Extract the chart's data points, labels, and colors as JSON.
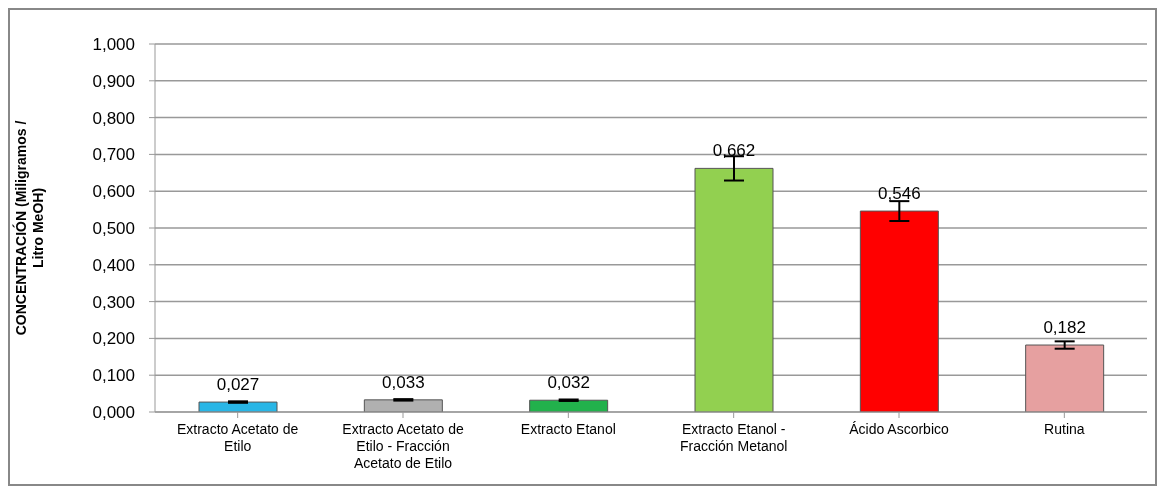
{
  "chart_data": {
    "type": "bar",
    "ylabel": "CONCENTRACIÓN (Miligramos / Litro MeOH)",
    "categories": [
      "Extracto Acetato de Etilo",
      "Extracto Acetato de Etilo - Fracción Acetato de Etilo",
      "Extracto Etanol",
      "Extracto Etanol - Fracción Metanol",
      "Ácido Ascorbico",
      "Rutina"
    ],
    "values": [
      0.027,
      0.033,
      0.032,
      0.662,
      0.546,
      0.182
    ],
    "errors": [
      0.002,
      0.002,
      0.002,
      0.033,
      0.027,
      0.01
    ],
    "colors": [
      "#29b6e6",
      "#b0b0b0",
      "#22b14c",
      "#92d050",
      "#ff0000",
      "#e6a0a0"
    ],
    "value_labels": [
      "0,027",
      "0,033",
      "0,032",
      "0,662",
      "0,546",
      "0,182"
    ],
    "ylim": [
      0,
      1
    ],
    "yticks": [
      {
        "value": 0,
        "label": "0,000"
      },
      {
        "value": 0.1,
        "label": "0,100"
      },
      {
        "value": 0.2,
        "label": "0,200"
      },
      {
        "value": 0.3,
        "label": "0,300"
      },
      {
        "value": 0.4,
        "label": "0,400"
      },
      {
        "value": 0.5,
        "label": "0,500"
      },
      {
        "value": 0.6,
        "label": "0,600"
      },
      {
        "value": 0.7,
        "label": "0,700"
      },
      {
        "value": 0.8,
        "label": "0,800"
      },
      {
        "value": 0.9,
        "label": "0,900"
      },
      {
        "value": 1,
        "label": "1,000"
      }
    ],
    "grid": "y",
    "legend": false
  }
}
